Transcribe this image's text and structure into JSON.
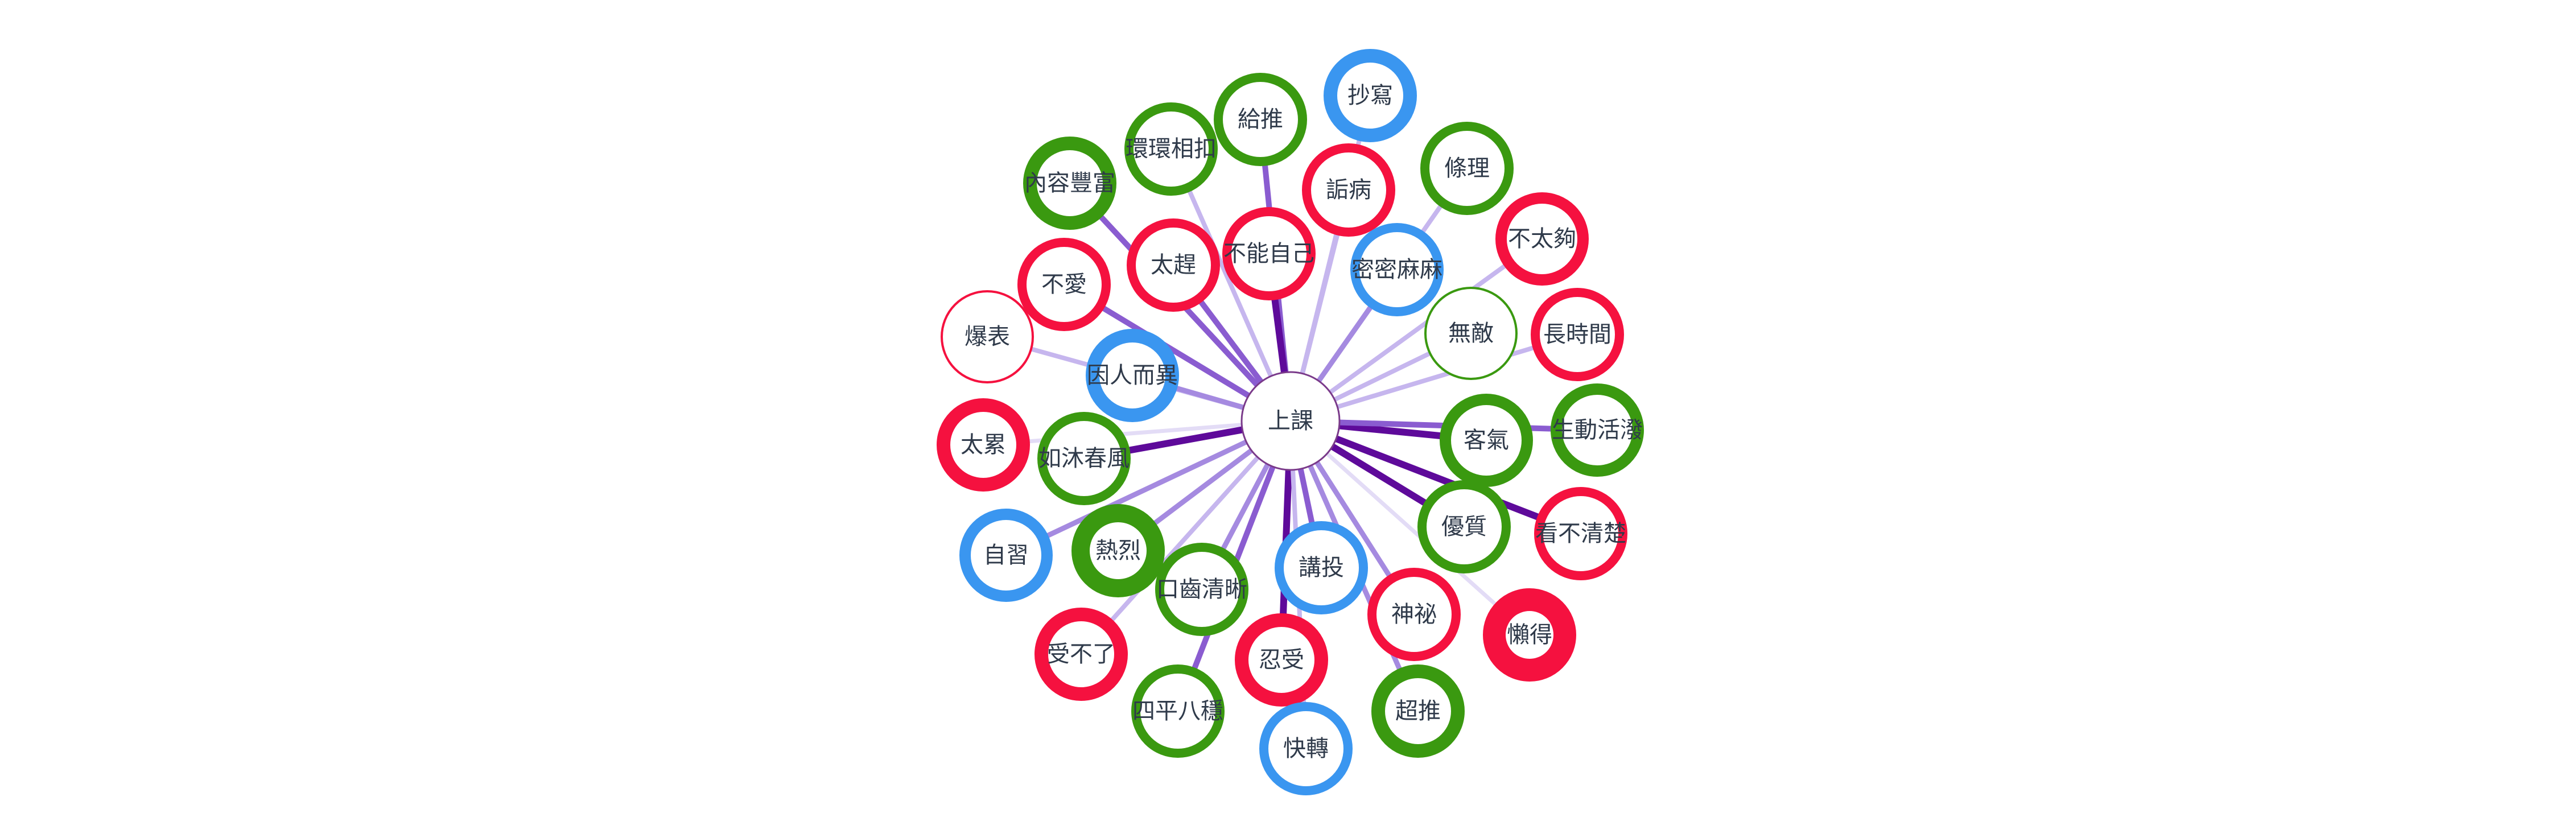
{
  "colors": {
    "red": "#f5113f",
    "green": "#3a9910",
    "blue": "#3a96f0",
    "center_stroke": "#7a3a8a"
  },
  "center": {
    "id": "center",
    "label": "上課"
  },
  "nodes": [
    {
      "id": "n1",
      "label": "抄寫",
      "group": "blue",
      "weight": 3,
      "link_strength": 2
    },
    {
      "id": "n2",
      "label": "給推",
      "group": "green",
      "weight": 2,
      "link_strength": 4
    },
    {
      "id": "n3",
      "label": "環環相扣",
      "group": "green",
      "weight": 2,
      "link_strength": 2
    },
    {
      "id": "n4",
      "label": "條理",
      "group": "green",
      "weight": 2,
      "link_strength": 2
    },
    {
      "id": "n5",
      "label": "內容豐富",
      "group": "green",
      "weight": 3,
      "link_strength": 4
    },
    {
      "id": "n6",
      "label": "詬病",
      "group": "red",
      "weight": 2,
      "link_strength": 2
    },
    {
      "id": "n7",
      "label": "不太夠",
      "group": "red",
      "weight": 2.5,
      "link_strength": 2
    },
    {
      "id": "n8",
      "label": "太趕",
      "group": "red",
      "weight": 2,
      "link_strength": 4
    },
    {
      "id": "n9",
      "label": "不能自己",
      "group": "red",
      "weight": 2,
      "link_strength": 5
    },
    {
      "id": "n10",
      "label": "密密麻麻",
      "group": "blue",
      "weight": 2,
      "link_strength": 3
    },
    {
      "id": "n11",
      "label": "不愛",
      "group": "red",
      "weight": 2,
      "link_strength": 4
    },
    {
      "id": "n12",
      "label": "長時間",
      "group": "red",
      "weight": 2,
      "link_strength": 2
    },
    {
      "id": "n13",
      "label": "無敵",
      "group": "green",
      "weight": 0.5,
      "link_strength": 2
    },
    {
      "id": "n14",
      "label": "爆表",
      "group": "red",
      "weight": 0.5,
      "link_strength": 2
    },
    {
      "id": "n15",
      "label": "因人而異",
      "group": "blue",
      "weight": 3,
      "link_strength": 3
    },
    {
      "id": "n16",
      "label": "太累",
      "group": "red",
      "weight": 3,
      "link_strength": 1
    },
    {
      "id": "n17",
      "label": "如沐春風",
      "group": "green",
      "weight": 2,
      "link_strength": 5
    },
    {
      "id": "n18",
      "label": "客氣",
      "group": "green",
      "weight": 2.5,
      "link_strength": 5
    },
    {
      "id": "n19",
      "label": "生動活潑",
      "group": "green",
      "weight": 2.5,
      "link_strength": 4
    },
    {
      "id": "n20",
      "label": "自習",
      "group": "blue",
      "weight": 2.5,
      "link_strength": 3
    },
    {
      "id": "n21",
      "label": "熱烈",
      "group": "green",
      "weight": 4,
      "link_strength": 3
    },
    {
      "id": "n22",
      "label": "優質",
      "group": "green",
      "weight": 2,
      "link_strength": 5
    },
    {
      "id": "n23",
      "label": "看不清楚",
      "group": "red",
      "weight": 2,
      "link_strength": 5
    },
    {
      "id": "n24",
      "label": "講投",
      "group": "blue",
      "weight": 2,
      "link_strength": 4
    },
    {
      "id": "n25",
      "label": "口齒清晰",
      "group": "green",
      "weight": 2,
      "link_strength": 3
    },
    {
      "id": "n26",
      "label": "神祕",
      "group": "red",
      "weight": 2,
      "link_strength": 3
    },
    {
      "id": "n27",
      "label": "懶得",
      "group": "red",
      "weight": 5,
      "link_strength": 1
    },
    {
      "id": "n28",
      "label": "受不了",
      "group": "red",
      "weight": 3,
      "link_strength": 2
    },
    {
      "id": "n29",
      "label": "忍受",
      "group": "red",
      "weight": 3,
      "link_strength": 5
    },
    {
      "id": "n30",
      "label": "四平八穩",
      "group": "green",
      "weight": 2,
      "link_strength": 4
    },
    {
      "id": "n31",
      "label": "超推",
      "group": "green",
      "weight": 3,
      "link_strength": 3
    },
    {
      "id": "n32",
      "label": "快轉",
      "group": "blue",
      "weight": 2,
      "link_strength": 2
    }
  ]
}
